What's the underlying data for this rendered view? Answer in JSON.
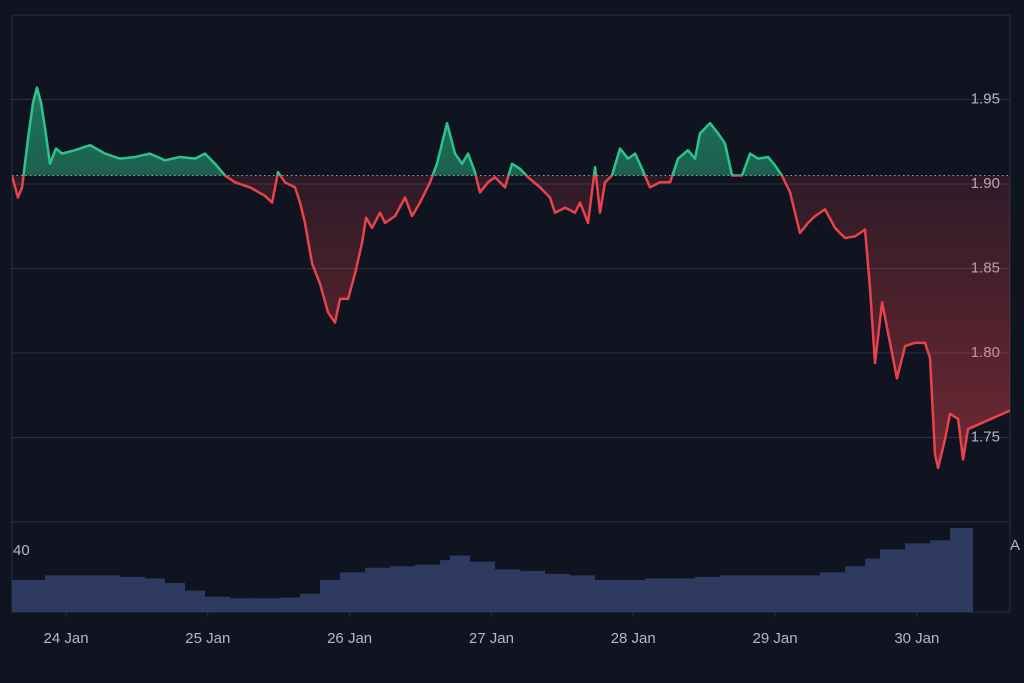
{
  "chart_data": {
    "type": "line",
    "x": [
      -0.381,
      -0.339,
      -0.31,
      -0.268,
      -0.233,
      -0.205,
      -0.176,
      -0.148,
      -0.113,
      -0.071,
      -0.028,
      0.063,
      0.169,
      0.275,
      0.381,
      0.487,
      0.592,
      0.698,
      0.804,
      0.91,
      0.98,
      1.051,
      1.121,
      1.192,
      1.298,
      1.403,
      1.453,
      1.495,
      1.544,
      1.615,
      1.65,
      1.685,
      1.735,
      1.791,
      1.848,
      1.897,
      1.932,
      1.989,
      2.038,
      2.087,
      2.116,
      2.158,
      2.214,
      2.25,
      2.32,
      2.391,
      2.44,
      2.496,
      2.567,
      2.616,
      2.687,
      2.743,
      2.793,
      2.835,
      2.884,
      2.919,
      2.976,
      3.025,
      3.096,
      3.145,
      3.202,
      3.258,
      3.343,
      3.413,
      3.448,
      3.519,
      3.59,
      3.625,
      3.681,
      3.731,
      3.766,
      3.801,
      3.85,
      3.907,
      3.963,
      4.013,
      4.062,
      4.118,
      4.189,
      4.26,
      4.316,
      4.386,
      4.436,
      4.471,
      4.542,
      4.598,
      4.647,
      4.697,
      4.767,
      4.824,
      4.88,
      4.951,
      5.0,
      5.049,
      5.106,
      5.141,
      5.176,
      5.233,
      5.282,
      5.353,
      5.423,
      5.494,
      5.564,
      5.635,
      5.67,
      5.705,
      5.755,
      5.811,
      5.86,
      5.917,
      5.987,
      6.058,
      6.093,
      6.128,
      6.15,
      6.199,
      6.234,
      6.291,
      6.326,
      6.361,
      6.657
    ],
    "values": [
      1.905,
      1.892,
      1.898,
      1.927,
      1.948,
      1.957,
      1.948,
      1.933,
      1.912,
      1.921,
      1.918,
      1.92,
      1.923,
      1.918,
      1.915,
      1.916,
      1.918,
      1.914,
      1.916,
      1.915,
      1.918,
      1.912,
      1.905,
      1.901,
      1.898,
      1.893,
      1.889,
      1.907,
      1.901,
      1.898,
      1.889,
      1.877,
      1.853,
      1.841,
      1.824,
      1.818,
      1.832,
      1.832,
      1.847,
      1.865,
      1.88,
      1.874,
      1.883,
      1.877,
      1.881,
      1.892,
      1.881,
      1.889,
      1.901,
      1.912,
      1.936,
      1.918,
      1.912,
      1.918,
      1.907,
      1.895,
      1.901,
      1.904,
      1.898,
      1.912,
      1.909,
      1.904,
      1.898,
      1.892,
      1.883,
      1.886,
      1.883,
      1.889,
      1.877,
      1.91,
      1.883,
      1.901,
      1.905,
      1.921,
      1.915,
      1.918,
      1.909,
      1.898,
      1.901,
      1.901,
      1.915,
      1.92,
      1.915,
      1.93,
      1.936,
      1.93,
      1.924,
      1.905,
      1.905,
      1.918,
      1.915,
      1.916,
      1.911,
      1.905,
      1.895,
      1.883,
      1.871,
      1.877,
      1.881,
      1.885,
      1.874,
      1.868,
      1.869,
      1.873,
      1.838,
      1.794,
      1.83,
      1.806,
      1.785,
      1.804,
      1.806,
      1.806,
      1.797,
      1.74,
      1.732,
      1.749,
      1.764,
      1.761,
      1.737,
      1.755,
      1.766
    ],
    "baseline": 1.905,
    "up_color": "#2bc48a",
    "down_color": "#e8434c",
    "xlim": [
      -0.381,
      6.657
    ],
    "xticks": [
      {
        "value": 0,
        "label": "24 Jan"
      },
      {
        "value": 1,
        "label": "25 Jan"
      },
      {
        "value": 2,
        "label": "26 Jan"
      },
      {
        "value": 3,
        "label": "27 Jan"
      },
      {
        "value": 4,
        "label": "28 Jan"
      },
      {
        "value": 5,
        "label": "29 Jan"
      },
      {
        "value": 6,
        "label": "30 Jan"
      }
    ],
    "ylim": [
      1.7,
      2.0
    ],
    "yticks": [
      {
        "value": 1.75,
        "label": "1.75"
      },
      {
        "value": 1.8,
        "label": "1.80"
      },
      {
        "value": 1.85,
        "label": "1.85"
      },
      {
        "value": 1.9,
        "label": "1.90"
      },
      {
        "value": 1.95,
        "label": "1.95"
      }
    ],
    "grid": true,
    "volume": {
      "x": [
        -0.324,
        -0.148,
        0.028,
        0.205,
        0.381,
        0.557,
        0.698,
        0.839,
        0.98,
        1.157,
        1.333,
        1.509,
        1.65,
        1.791,
        1.932,
        2.109,
        2.285,
        2.461,
        2.638,
        2.708,
        2.849,
        3.025,
        3.202,
        3.378,
        3.554,
        3.731,
        3.907,
        4.083,
        4.26,
        4.436,
        4.612,
        4.788,
        4.965,
        5.141,
        5.317,
        5.494,
        5.635,
        5.741,
        5.917,
        6.093,
        6.234,
        6.375
      ],
      "values": [
        21,
        24,
        24,
        24,
        23,
        22,
        19,
        14,
        10,
        9,
        9,
        9.5,
        12,
        21,
        26,
        29,
        30,
        31,
        34,
        37,
        33,
        28,
        27,
        25,
        24,
        21,
        21,
        22,
        22,
        23,
        24,
        24,
        24,
        24,
        26,
        30,
        35,
        41,
        45,
        47,
        55,
        55
      ],
      "color": "#2f3a60",
      "ylim": [
        0,
        59
      ],
      "yticks": [
        40
      ],
      "side_label": "A"
    }
  }
}
